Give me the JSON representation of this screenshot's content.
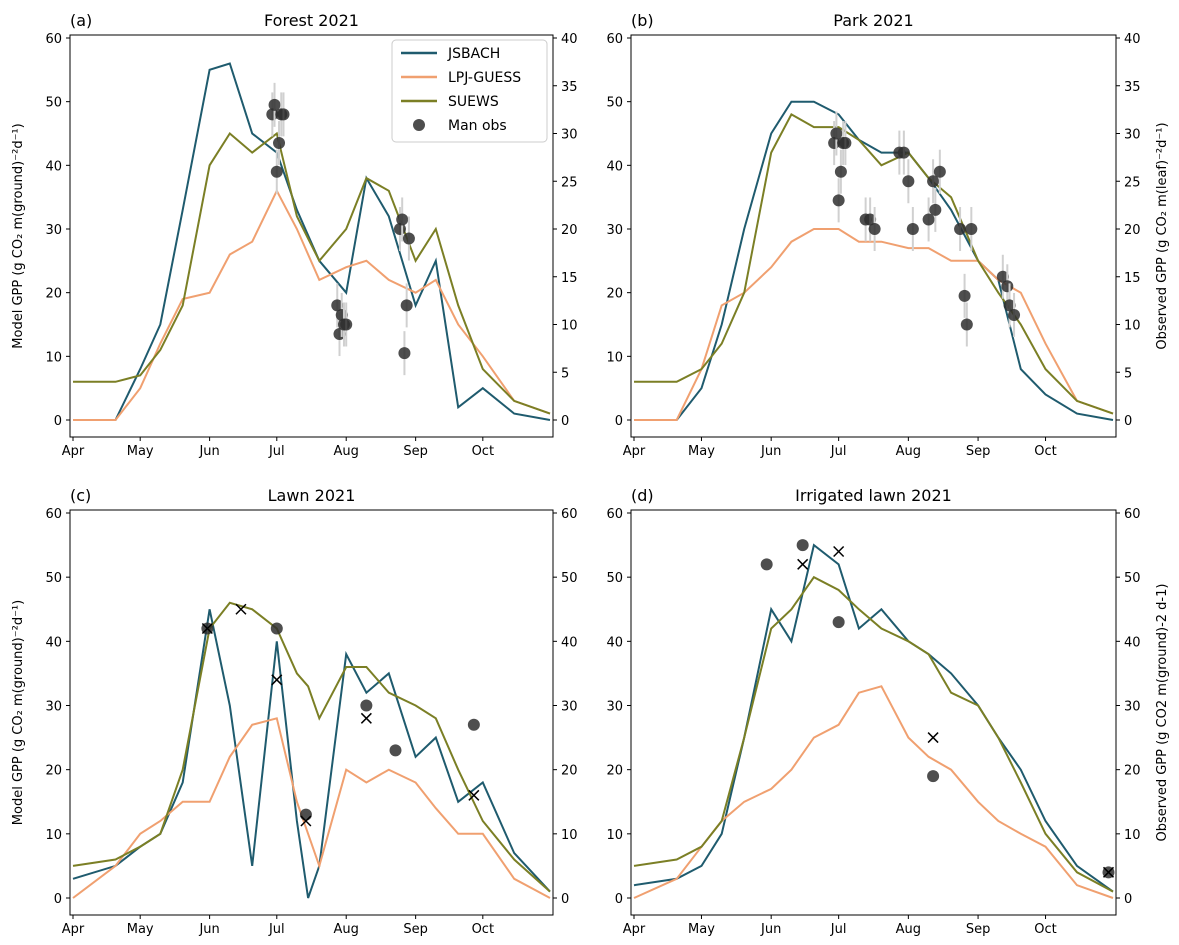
{
  "colors": {
    "JSBACH": "#1f5b6e",
    "LPJ-GUESS": "#f0a070",
    "SUEWS": "#7b7f25",
    "obs": "#2f2f2f",
    "errorbar": "#d0d0d0"
  },
  "legend": [
    "JSBACH",
    "LPJ-GUESS",
    "SUEWS",
    "Man obs"
  ],
  "month_ticks": [
    "Apr",
    "May",
    "Jun",
    "Jul",
    "Aug",
    "Sep",
    "Oct"
  ],
  "chart_data": [
    {
      "type": "line",
      "panel_label": "(a)",
      "title": "Forest 2021",
      "ylabel": "Model GPP (g CO₂ m(ground)⁻²d⁻¹)",
      "y2label": "",
      "ylim": [
        0,
        60
      ],
      "y2lim": [
        0,
        40
      ],
      "yticks": [
        "0",
        "10",
        "20",
        "30",
        "40",
        "50",
        "60"
      ],
      "y2ticks": [
        "0",
        "5",
        "10",
        "15",
        "20",
        "25",
        "30",
        "35",
        "40"
      ],
      "series": [
        {
          "name": "JSBACH",
          "x": [
            "Apr 1",
            "Apr 20",
            "May 1",
            "May 10",
            "May 20",
            "Jun 1",
            "Jun 10",
            "Jun 20",
            "Jul 1",
            "Jul 10",
            "Jul 20",
            "Aug 1",
            "Aug 10",
            "Aug 20",
            "Sep 1",
            "Sep 10",
            "Sep 20",
            "Oct 1",
            "Oct 15",
            "Oct 31"
          ],
          "y": [
            0,
            0,
            8,
            15,
            33,
            55,
            56,
            45,
            42,
            33,
            25,
            20,
            38,
            32,
            18,
            25,
            2,
            5,
            1,
            0
          ]
        },
        {
          "name": "LPJ-GUESS",
          "x": [
            "Apr 1",
            "Apr 20",
            "May 1",
            "May 10",
            "May 20",
            "Jun 1",
            "Jun 10",
            "Jun 20",
            "Jul 1",
            "Jul 10",
            "Jul 20",
            "Aug 1",
            "Aug 10",
            "Aug 20",
            "Sep 1",
            "Sep 10",
            "Sep 20",
            "Oct 1",
            "Oct 15",
            "Oct 31"
          ],
          "y": [
            0,
            0,
            5,
            12,
            19,
            20,
            26,
            28,
            36,
            30,
            22,
            24,
            25,
            22,
            20,
            22,
            15,
            10,
            3,
            1
          ]
        },
        {
          "name": "SUEWS",
          "x": [
            "Apr 1",
            "Apr 20",
            "May 1",
            "May 10",
            "May 20",
            "Jun 1",
            "Jun 10",
            "Jun 20",
            "Jul 1",
            "Jul 10",
            "Jul 20",
            "Aug 1",
            "Aug 10",
            "Aug 20",
            "Sep 1",
            "Sep 10",
            "Sep 20",
            "Oct 1",
            "Oct 15",
            "Oct 31"
          ],
          "y": [
            6,
            6,
            7,
            11,
            18,
            40,
            45,
            42,
            45,
            32,
            25,
            30,
            38,
            36,
            25,
            30,
            18,
            8,
            3,
            1
          ]
        }
      ],
      "obs": {
        "x": [
          "Jun 29",
          "Jun 30",
          "Jul 1",
          "Jul 2",
          "Jul 3",
          "Jul 4",
          "Jul 28",
          "Jul 29",
          "Jul 30",
          "Jul 31",
          "Aug 1",
          "Aug 25",
          "Aug 26",
          "Aug 27",
          "Aug 28",
          "Aug 29"
        ],
        "y": [
          32,
          33,
          26,
          29,
          32,
          32,
          12,
          9,
          11,
          10,
          10,
          20,
          21,
          7,
          12,
          19
        ]
      }
    },
    {
      "type": "line",
      "panel_label": "(b)",
      "title": "Park 2021",
      "ylabel": "",
      "y2label": "Observed GPP (g CO₂ m(leaf)⁻²d⁻¹)",
      "ylim": [
        0,
        60
      ],
      "y2lim": [
        0,
        40
      ],
      "yticks": [
        "0",
        "10",
        "20",
        "30",
        "40",
        "50",
        "60"
      ],
      "y2ticks": [
        "0",
        "5",
        "10",
        "15",
        "20",
        "25",
        "30",
        "35",
        "40"
      ],
      "series": [
        {
          "name": "JSBACH",
          "x": [
            "Apr 1",
            "Apr 20",
            "May 1",
            "May 10",
            "May 20",
            "Jun 1",
            "Jun 10",
            "Jun 20",
            "Jul 1",
            "Jul 10",
            "Jul 20",
            "Aug 1",
            "Aug 10",
            "Aug 20",
            "Sep 1",
            "Sep 10",
            "Sep 20",
            "Oct 1",
            "Oct 15",
            "Oct 31"
          ],
          "y": [
            0,
            0,
            5,
            15,
            30,
            45,
            50,
            50,
            48,
            44,
            42,
            42,
            38,
            33,
            25,
            22,
            8,
            4,
            1,
            0
          ]
        },
        {
          "name": "LPJ-GUESS",
          "x": [
            "Apr 1",
            "Apr 20",
            "May 1",
            "May 10",
            "May 20",
            "Jun 1",
            "Jun 10",
            "Jun 20",
            "Jul 1",
            "Jul 10",
            "Jul 20",
            "Aug 1",
            "Aug 10",
            "Aug 20",
            "Sep 1",
            "Sep 10",
            "Sep 20",
            "Oct 1",
            "Oct 15",
            "Oct 31"
          ],
          "y": [
            0,
            0,
            8,
            18,
            20,
            24,
            28,
            30,
            30,
            28,
            28,
            27,
            27,
            25,
            25,
            22,
            20,
            12,
            3,
            1
          ]
        },
        {
          "name": "SUEWS",
          "x": [
            "Apr 1",
            "Apr 20",
            "May 1",
            "May 10",
            "May 20",
            "Jun 1",
            "Jun 10",
            "Jun 20",
            "Jul 1",
            "Jul 10",
            "Jul 20",
            "Aug 1",
            "Aug 10",
            "Aug 20",
            "Sep 1",
            "Sep 10",
            "Sep 20",
            "Oct 1",
            "Oct 15",
            "Oct 31"
          ],
          "y": [
            6,
            6,
            8,
            12,
            20,
            42,
            48,
            46,
            46,
            44,
            40,
            42,
            38,
            35,
            25,
            20,
            15,
            8,
            3,
            1
          ]
        }
      ],
      "obs": {
        "x": [
          "Jun 29",
          "Jun 30",
          "Jul 1",
          "Jul 2",
          "Jul 3",
          "Jul 4",
          "Jul 13",
          "Jul 15",
          "Jul 17",
          "Jul 28",
          "Jul 30",
          "Aug 1",
          "Aug 3",
          "Aug 10",
          "Aug 12",
          "Aug 13",
          "Aug 15",
          "Aug 24",
          "Aug 26",
          "Aug 27",
          "Aug 29",
          "Sep 12",
          "Sep 14",
          "Sep 15",
          "Sep 17"
        ],
        "y": [
          29,
          30,
          23,
          26,
          29,
          29,
          21,
          21,
          20,
          28,
          28,
          25,
          20,
          21,
          25,
          22,
          26,
          20,
          13,
          10,
          20,
          15,
          14,
          12,
          11
        ]
      }
    },
    {
      "type": "line",
      "panel_label": "(c)",
      "title": "Lawn 2021",
      "ylabel": "Model GPP (g CO₂ m(ground)⁻²d⁻¹)",
      "y2label": "",
      "ylim": [
        0,
        60
      ],
      "y2lim": [
        0,
        60
      ],
      "yticks": [
        "0",
        "10",
        "20",
        "30",
        "40",
        "50",
        "60"
      ],
      "y2ticks": [
        "0",
        "10",
        "20",
        "30",
        "40",
        "50",
        "60"
      ],
      "series": [
        {
          "name": "JSBACH",
          "x": [
            "Apr 1",
            "Apr 20",
            "May 1",
            "May 10",
            "May 20",
            "Jun 1",
            "Jun 10",
            "Jun 20",
            "Jul 1",
            "Jul 10",
            "Jul 15",
            "Jul 20",
            "Aug 1",
            "Aug 10",
            "Aug 20",
            "Sep 1",
            "Sep 10",
            "Sep 20",
            "Oct 1",
            "Oct 15",
            "Oct 31"
          ],
          "y": [
            3,
            5,
            8,
            10,
            18,
            45,
            30,
            5,
            40,
            12,
            0,
            5,
            38,
            32,
            35,
            22,
            25,
            15,
            18,
            7,
            1
          ]
        },
        {
          "name": "LPJ-GUESS",
          "x": [
            "Apr 1",
            "Apr 20",
            "May 1",
            "May 10",
            "May 20",
            "Jun 1",
            "Jun 10",
            "Jun 20",
            "Jul 1",
            "Jul 10",
            "Jul 15",
            "Jul 20",
            "Aug 1",
            "Aug 10",
            "Aug 20",
            "Sep 1",
            "Sep 10",
            "Sep 20",
            "Oct 1",
            "Oct 15",
            "Oct 31"
          ],
          "y": [
            0,
            5,
            10,
            12,
            15,
            15,
            22,
            27,
            28,
            15,
            10,
            5,
            20,
            18,
            20,
            18,
            14,
            10,
            10,
            3,
            0
          ]
        },
        {
          "name": "SUEWS",
          "x": [
            "Apr 1",
            "Apr 20",
            "May 1",
            "May 10",
            "May 20",
            "Jun 1",
            "Jun 10",
            "Jun 20",
            "Jul 1",
            "Jul 10",
            "Jul 15",
            "Jul 20",
            "Aug 1",
            "Aug 10",
            "Aug 20",
            "Sep 1",
            "Sep 10",
            "Sep 20",
            "Oct 1",
            "Oct 15",
            "Oct 31"
          ],
          "y": [
            5,
            6,
            8,
            10,
            20,
            42,
            46,
            45,
            42,
            35,
            33,
            28,
            36,
            36,
            32,
            30,
            28,
            20,
            12,
            6,
            1
          ]
        }
      ],
      "obs": {
        "x": [
          "May 31",
          "Jul 1",
          "Jul 14",
          "Aug 10",
          "Aug 23",
          "Sep 27"
        ],
        "y": [
          42,
          42,
          13,
          30,
          23,
          27
        ]
      },
      "obs_x_markers": {
        "x": [
          "May 31",
          "Jun 15",
          "Jul 1",
          "Jul 14",
          "Aug 10",
          "Sep 27"
        ],
        "y": [
          42,
          45,
          34,
          12,
          28,
          16
        ]
      }
    },
    {
      "type": "line",
      "panel_label": "(d)",
      "title": "Irrigated lawn 2021",
      "ylabel": "",
      "y2label": "Observed GPP (g CO2 m(ground)-2 d-1)",
      "ylim": [
        0,
        60
      ],
      "y2lim": [
        0,
        60
      ],
      "yticks": [
        "0",
        "10",
        "20",
        "30",
        "40",
        "50",
        "60"
      ],
      "y2ticks": [
        "0",
        "10",
        "20",
        "30",
        "40",
        "50",
        "60"
      ],
      "series": [
        {
          "name": "JSBACH",
          "x": [
            "Apr 1",
            "Apr 20",
            "May 1",
            "May 10",
            "May 20",
            "Jun 1",
            "Jun 10",
            "Jun 20",
            "Jul 1",
            "Jul 10",
            "Jul 20",
            "Aug 1",
            "Aug 10",
            "Aug 20",
            "Sep 1",
            "Sep 10",
            "Sep 20",
            "Oct 1",
            "Oct 15",
            "Oct 31"
          ],
          "y": [
            2,
            3,
            5,
            10,
            25,
            45,
            40,
            55,
            52,
            42,
            45,
            40,
            38,
            35,
            30,
            25,
            20,
            12,
            5,
            1
          ]
        },
        {
          "name": "LPJ-GUESS",
          "x": [
            "Apr 1",
            "Apr 20",
            "May 1",
            "May 10",
            "May 20",
            "Jun 1",
            "Jun 10",
            "Jun 20",
            "Jul 1",
            "Jul 10",
            "Jul 20",
            "Aug 1",
            "Aug 10",
            "Aug 20",
            "Sep 1",
            "Sep 10",
            "Sep 20",
            "Oct 1",
            "Oct 15",
            "Oct 31"
          ],
          "y": [
            0,
            3,
            8,
            12,
            15,
            17,
            20,
            25,
            27,
            32,
            33,
            25,
            22,
            20,
            15,
            12,
            10,
            8,
            2,
            0
          ]
        },
        {
          "name": "SUEWS",
          "x": [
            "Apr 1",
            "Apr 20",
            "May 1",
            "May 10",
            "May 20",
            "Jun 1",
            "Jun 10",
            "Jun 20",
            "Jul 1",
            "Jul 10",
            "Jul 20",
            "Aug 1",
            "Aug 10",
            "Aug 20",
            "Sep 1",
            "Sep 10",
            "Sep 20",
            "Oct 1",
            "Oct 15",
            "Oct 31"
          ],
          "y": [
            5,
            6,
            8,
            12,
            25,
            42,
            45,
            50,
            48,
            45,
            42,
            40,
            38,
            32,
            30,
            25,
            18,
            10,
            4,
            1
          ]
        }
      ],
      "obs": {
        "x": [
          "May 30",
          "Jun 15",
          "Jul 1",
          "Aug 12",
          "Oct 29"
        ],
        "y": [
          52,
          55,
          43,
          19,
          4
        ]
      },
      "obs_x_markers": {
        "x": [
          "Jun 15",
          "Jul 1",
          "Aug 12",
          "Oct 29"
        ],
        "y": [
          52,
          54,
          25,
          4
        ]
      }
    }
  ]
}
